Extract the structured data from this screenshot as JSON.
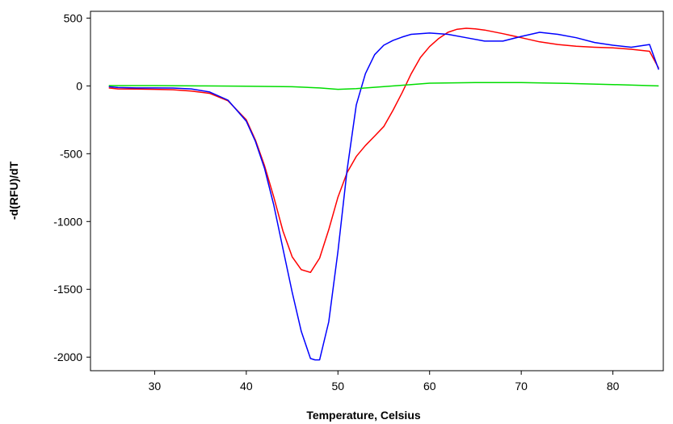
{
  "chart_data": {
    "type": "line",
    "title": "",
    "xlabel": "Temperature, Celsius",
    "ylabel": "-d(RFU)/dT",
    "xlim": [
      23,
      85.5
    ],
    "ylim": [
      -2100,
      550
    ],
    "xticks": [
      30,
      40,
      50,
      60,
      70,
      80
    ],
    "yticks": [
      500,
      0,
      -500,
      -1000,
      -1500,
      -2000
    ],
    "grid": false,
    "legend": "none",
    "series": [
      {
        "color": "#ff0000",
        "x": [
          25,
          26,
          28,
          30,
          32,
          34,
          36,
          38,
          40,
          41,
          42,
          43,
          44,
          45,
          46,
          47,
          48,
          49,
          50,
          51,
          52,
          53,
          54,
          55,
          56,
          57,
          58,
          59,
          60,
          61,
          62,
          63,
          64,
          65,
          66,
          68,
          70,
          72,
          74,
          76,
          78,
          80,
          82,
          84,
          85
        ],
        "values": [
          -15,
          -22,
          -23,
          -25,
          -28,
          -38,
          -55,
          -110,
          -250,
          -400,
          -590,
          -820,
          -1070,
          -1260,
          -1355,
          -1375,
          -1270,
          -1060,
          -820,
          -640,
          -520,
          -440,
          -370,
          -300,
          -180,
          -50,
          90,
          210,
          290,
          350,
          395,
          418,
          425,
          420,
          412,
          385,
          355,
          325,
          305,
          292,
          285,
          280,
          270,
          255,
          130
        ]
      },
      {
        "color": "#0000ff",
        "x": [
          25,
          26,
          28,
          30,
          32,
          34,
          36,
          38,
          40,
          41,
          42,
          43,
          44,
          45,
          46,
          47,
          47.5,
          48,
          49,
          50,
          51,
          52,
          53,
          54,
          55,
          56,
          57,
          58,
          60,
          62,
          64,
          66,
          68,
          70,
          72,
          74,
          76,
          78,
          80,
          82,
          84,
          85
        ],
        "values": [
          -5,
          -12,
          -15,
          -15,
          -16,
          -22,
          -45,
          -105,
          -260,
          -410,
          -610,
          -880,
          -1200,
          -1520,
          -1810,
          -2010,
          -2020,
          -2020,
          -1740,
          -1220,
          -620,
          -140,
          90,
          230,
          300,
          335,
          360,
          380,
          390,
          380,
          355,
          330,
          330,
          365,
          395,
          380,
          355,
          320,
          300,
          285,
          305,
          120
        ]
      },
      {
        "color": "#00dd00",
        "x": [
          25,
          30,
          35,
          40,
          45,
          48,
          50,
          52,
          55,
          58,
          60,
          65,
          70,
          75,
          80,
          85
        ],
        "values": [
          2,
          2,
          0,
          -2,
          -6,
          -15,
          -25,
          -20,
          -5,
          10,
          20,
          25,
          25,
          18,
          10,
          0
        ]
      }
    ]
  }
}
